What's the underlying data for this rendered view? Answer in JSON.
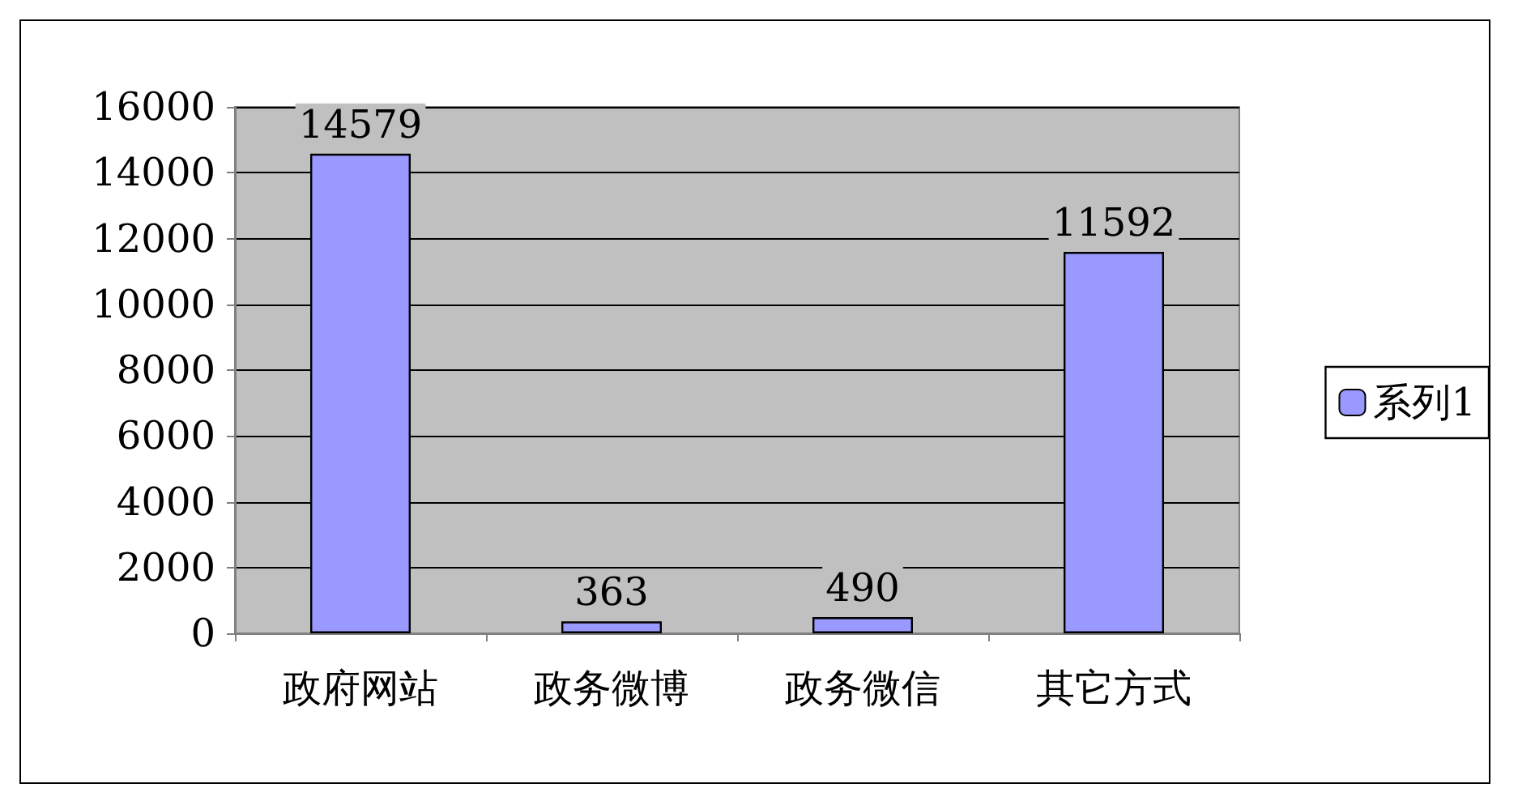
{
  "chart_data": {
    "type": "bar",
    "categories": [
      "政府网站",
      "政务微博",
      "政务微信",
      "其它方式"
    ],
    "series": [
      {
        "name": "系列1",
        "color": "#9999ff",
        "values": [
          14579,
          363,
          490,
          11592
        ]
      }
    ],
    "ylim": [
      0,
      16000
    ],
    "yticks": [
      0,
      2000,
      4000,
      6000,
      8000,
      10000,
      12000,
      14000,
      16000
    ],
    "grid": "y",
    "legend": "right",
    "data_labels": true
  }
}
